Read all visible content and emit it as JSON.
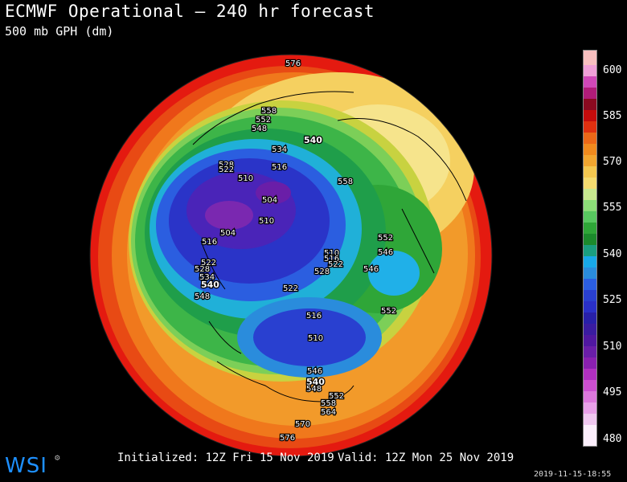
{
  "header": {
    "title": "ECMWF Operational — 240 hr forecast",
    "subtitle": "500 mb GPH (dm)"
  },
  "footer": {
    "initialized": "Initialized: 12Z Fri 15 Nov 2019",
    "valid": "Valid: 12Z Mon 25 Nov 2019",
    "timestamp": "2019-11-15-18:55",
    "logo": "WSI"
  },
  "legend": {
    "ticks": [
      "600",
      "585",
      "570",
      "555",
      "540",
      "525",
      "510",
      "495",
      "480"
    ]
  },
  "contour_labels": [
    {
      "text": "576"
    },
    {
      "text": "558"
    },
    {
      "text": "552"
    },
    {
      "text": "548"
    },
    {
      "text": "540"
    },
    {
      "text": "534"
    },
    {
      "text": "528"
    },
    {
      "text": "522"
    },
    {
      "text": "516"
    },
    {
      "text": "510"
    },
    {
      "text": "504"
    },
    {
      "text": "510"
    },
    {
      "text": "558"
    },
    {
      "text": "516"
    },
    {
      "text": "504"
    },
    {
      "text": "552"
    },
    {
      "text": "546"
    },
    {
      "text": "510"
    },
    {
      "text": "516"
    },
    {
      "text": "522"
    },
    {
      "text": "528"
    },
    {
      "text": "546"
    },
    {
      "text": "528"
    },
    {
      "text": "522"
    },
    {
      "text": "534"
    },
    {
      "text": "540"
    },
    {
      "text": "548"
    },
    {
      "text": "522"
    },
    {
      "text": "552"
    },
    {
      "text": "516"
    },
    {
      "text": "510"
    },
    {
      "text": "546"
    },
    {
      "text": "540"
    },
    {
      "text": "548"
    },
    {
      "text": "552"
    },
    {
      "text": "558"
    },
    {
      "text": "564"
    },
    {
      "text": "570"
    },
    {
      "text": "576"
    }
  ],
  "colors": {
    "background": "#000000",
    "warm": "#e8190f",
    "orange": "#f08a1e",
    "yellow": "#f5dc70",
    "green": "#2fa638",
    "cyan": "#18a8e8",
    "blue": "#2a30c8",
    "purple": "#6a1ea8",
    "logo": "#1e90ff"
  }
}
